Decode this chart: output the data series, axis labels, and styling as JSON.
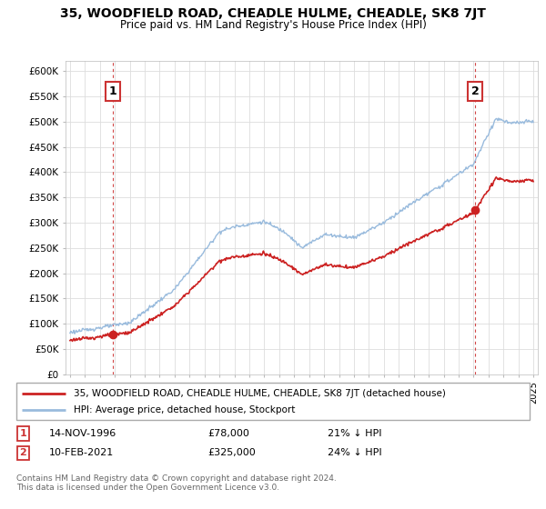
{
  "title": "35, WOODFIELD ROAD, CHEADLE HULME, CHEADLE, SK8 7JT",
  "subtitle": "Price paid vs. HM Land Registry's House Price Index (HPI)",
  "ylim": [
    0,
    620000
  ],
  "yticks": [
    0,
    50000,
    100000,
    150000,
    200000,
    250000,
    300000,
    350000,
    400000,
    450000,
    500000,
    550000,
    600000
  ],
  "ytick_labels": [
    "£0",
    "£50K",
    "£100K",
    "£150K",
    "£200K",
    "£250K",
    "£300K",
    "£350K",
    "£400K",
    "£450K",
    "£500K",
    "£550K",
    "£600K"
  ],
  "xlim_start": 1993.7,
  "xlim_end": 2025.3,
  "sale1_date": 1996.87,
  "sale1_price": 78000,
  "sale1_label": "1",
  "sale1_year_label": "14-NOV-1996",
  "sale1_price_label": "£78,000",
  "sale1_hpi_label": "21% ↓ HPI",
  "sale2_date": 2021.12,
  "sale2_price": 325000,
  "sale2_label": "2",
  "sale2_year_label": "10-FEB-2021",
  "sale2_price_label": "£325,000",
  "sale2_hpi_label": "24% ↓ HPI",
  "hpi_color": "#99bbdd",
  "sale_color": "#cc2222",
  "legend_label_sale": "35, WOODFIELD ROAD, CHEADLE HULME, CHEADLE, SK8 7JT (detached house)",
  "legend_label_hpi": "HPI: Average price, detached house, Stockport",
  "footer": "Contains HM Land Registry data © Crown copyright and database right 2024.\nThis data is licensed under the Open Government Licence v3.0.",
  "background_color": "#ffffff",
  "grid_color": "#dddddd"
}
